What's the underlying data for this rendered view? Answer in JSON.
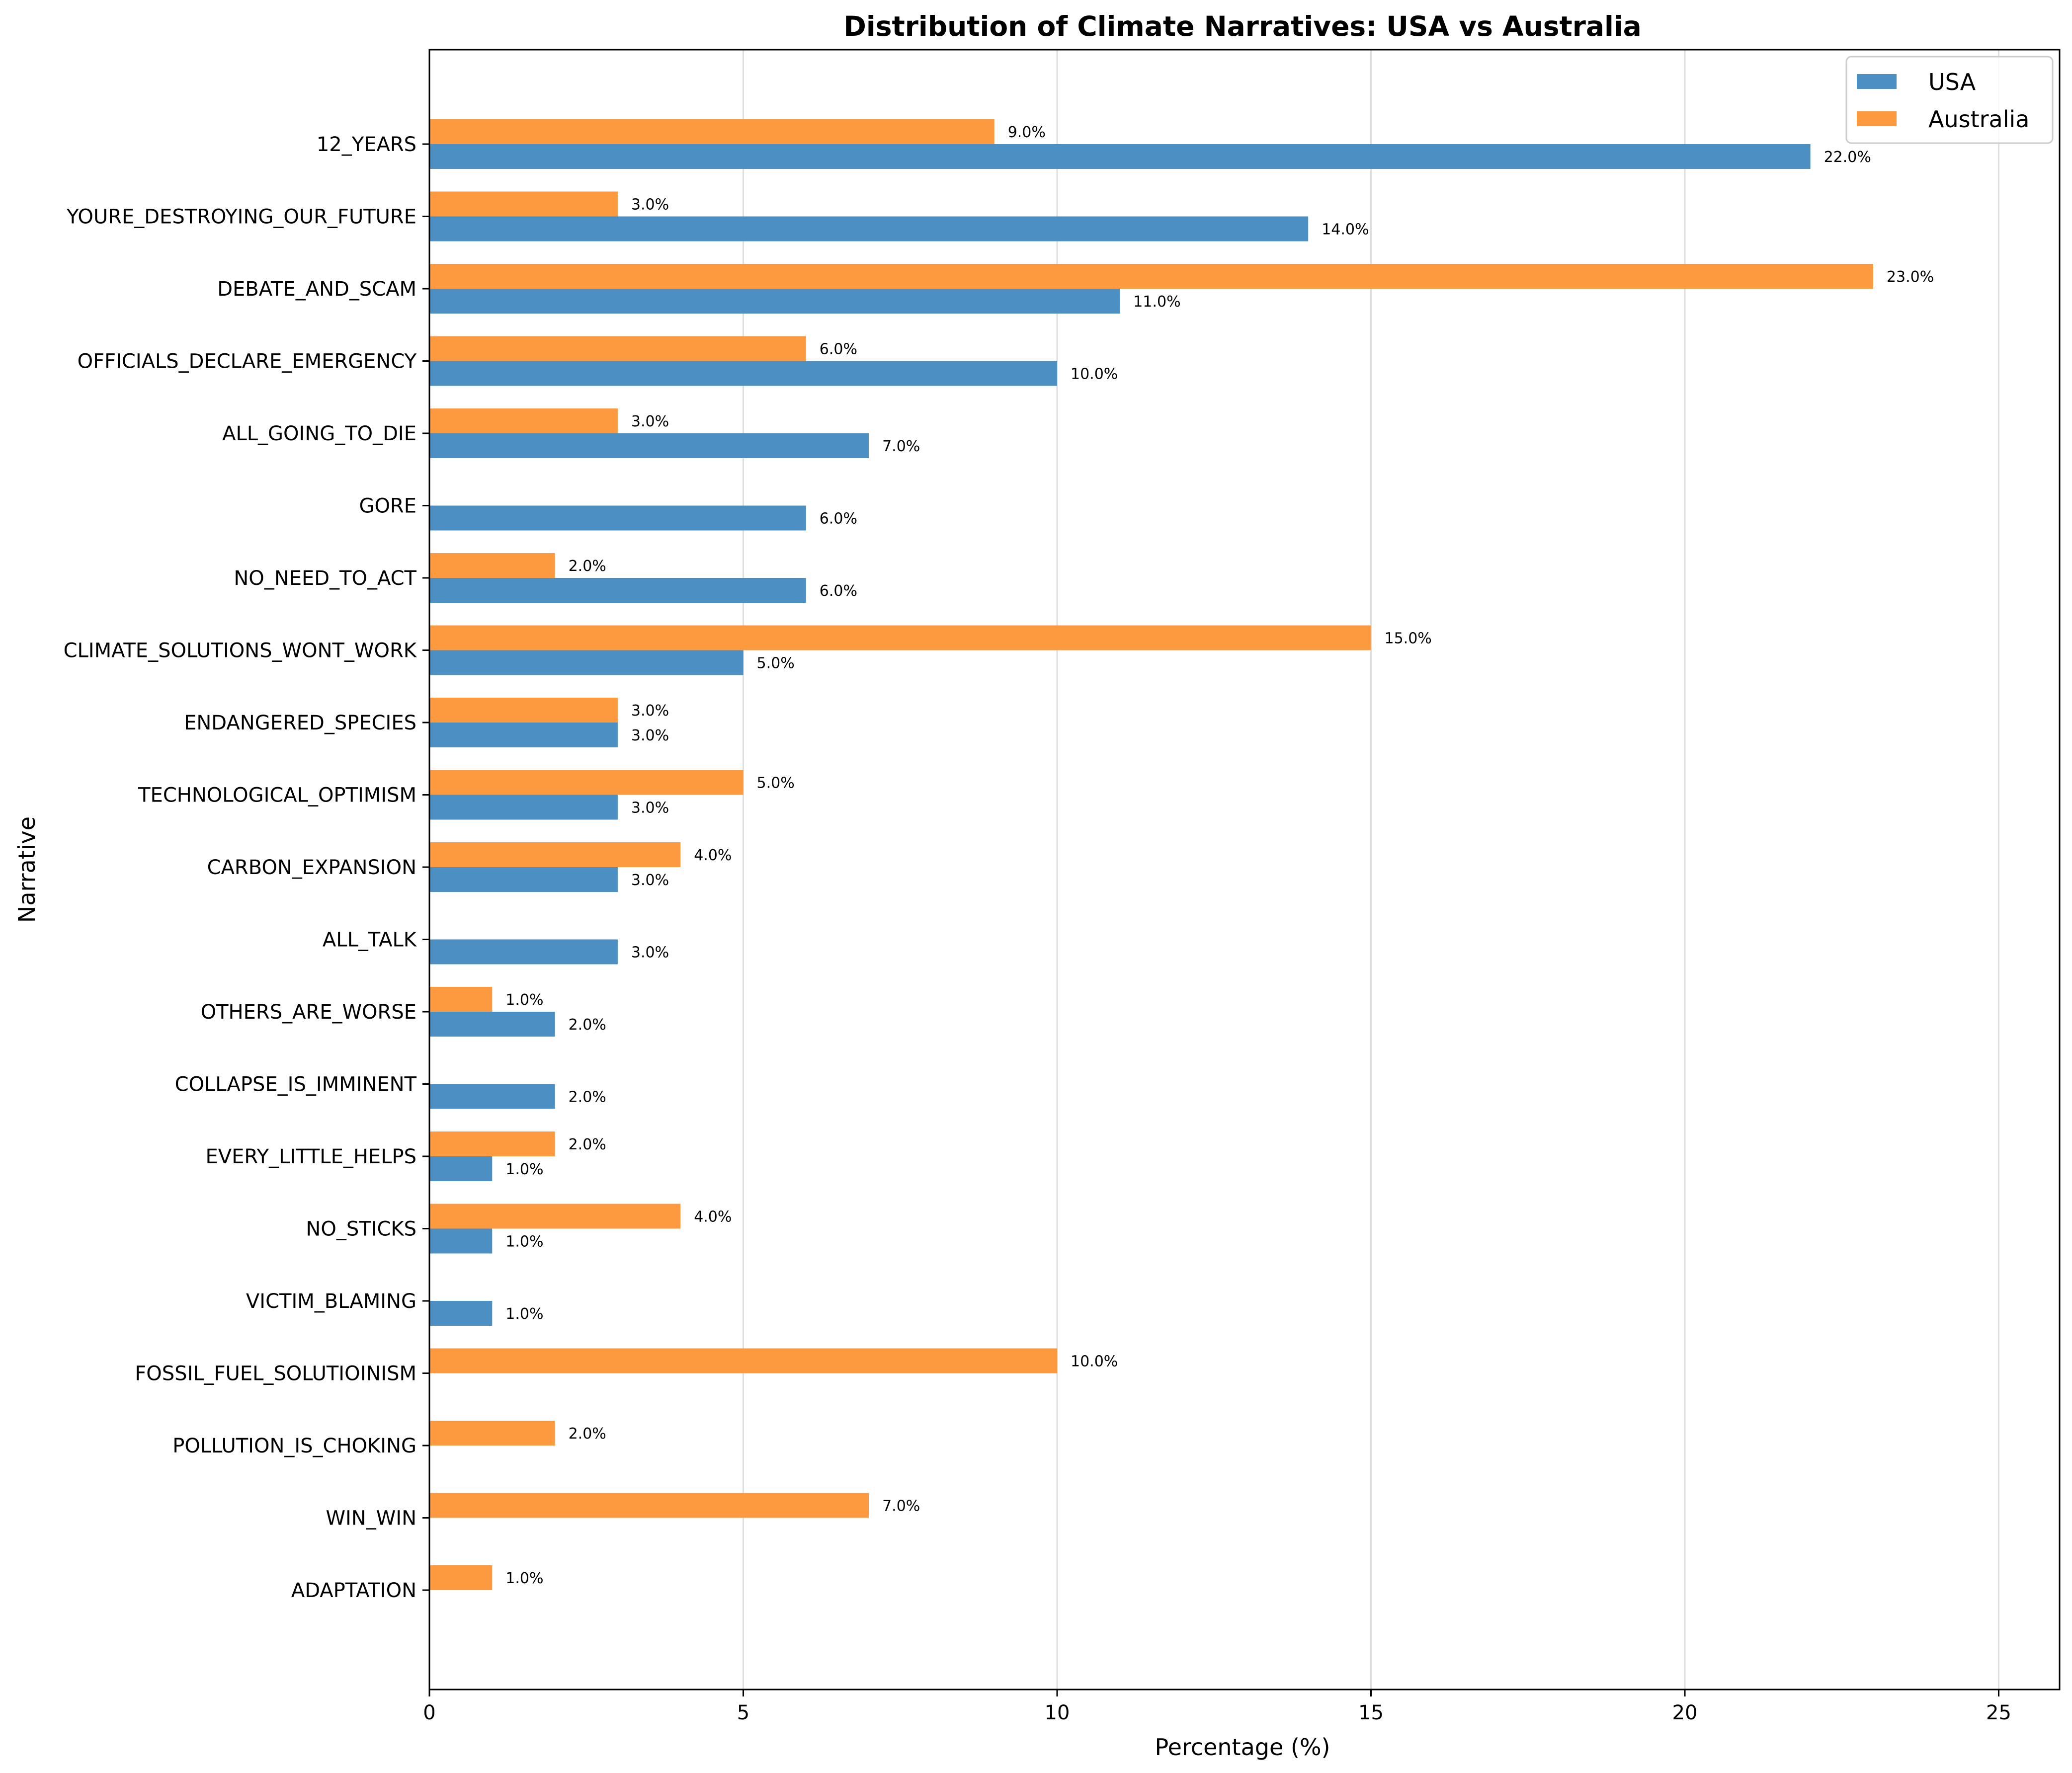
{
  "chart_data": {
    "type": "bar",
    "orientation": "horizontal",
    "title": "Distribution of Climate Narratives: USA vs Australia",
    "xlabel": "Percentage (%)",
    "ylabel": "Narrative",
    "xlim": [
      0,
      26
    ],
    "x_ticks": [
      "0",
      "5",
      "10",
      "15",
      "20",
      "25"
    ],
    "grid": "vertical",
    "legend_position": "upper right",
    "categories": [
      "12_YEARS",
      "YOURE_DESTROYING_OUR_FUTURE",
      "DEBATE_AND_SCAM",
      "OFFICIALS_DECLARE_EMERGENCY",
      "ALL_GOING_TO_DIE",
      "GORE",
      "NO_NEED_TO_ACT",
      "CLIMATE_SOLUTIONS_WONT_WORK",
      "ENDANGERED_SPECIES",
      "TECHNOLOGICAL_OPTIMISM",
      "CARBON_EXPANSION",
      "ALL_TALK",
      "OTHERS_ARE_WORSE",
      "COLLAPSE_IS_IMMINENT",
      "EVERY_LITTLE_HELPS",
      "NO_STICKS",
      "VICTIM_BLAMING",
      "FOSSIL_FUEL_SOLUTIOINISM",
      "POLLUTION_IS_CHOKING",
      "WIN_WIN",
      "ADAPTATION"
    ],
    "series": [
      {
        "name": "USA",
        "color": "#4c8fc2",
        "values": [
          22,
          14,
          11,
          10,
          7,
          6,
          6,
          5,
          3,
          3,
          3,
          3,
          2,
          2,
          1,
          1,
          1,
          0,
          0,
          0,
          0
        ],
        "labels": [
          "22.0%",
          "14.0%",
          "11.0%",
          "10.0%",
          "7.0%",
          "6.0%",
          "6.0%",
          "5.0%",
          "3.0%",
          "3.0%",
          "3.0%",
          "3.0%",
          "2.0%",
          "2.0%",
          "1.0%",
          "1.0%",
          "1.0%",
          null,
          null,
          null,
          null
        ]
      },
      {
        "name": "Australia",
        "color": "#fd9a3f",
        "values": [
          9,
          3,
          23,
          6,
          3,
          0,
          2,
          15,
          3,
          5,
          4,
          0,
          1,
          0,
          2,
          4,
          0,
          10,
          2,
          7,
          1
        ],
        "labels": [
          "9.0%",
          "3.0%",
          "23.0%",
          "6.0%",
          "3.0%",
          null,
          "2.0%",
          "15.0%",
          "3.0%",
          "5.0%",
          "4.0%",
          null,
          "1.0%",
          null,
          "2.0%",
          "4.0%",
          null,
          "10.0%",
          "2.0%",
          "7.0%",
          "1.0%"
        ]
      }
    ]
  }
}
